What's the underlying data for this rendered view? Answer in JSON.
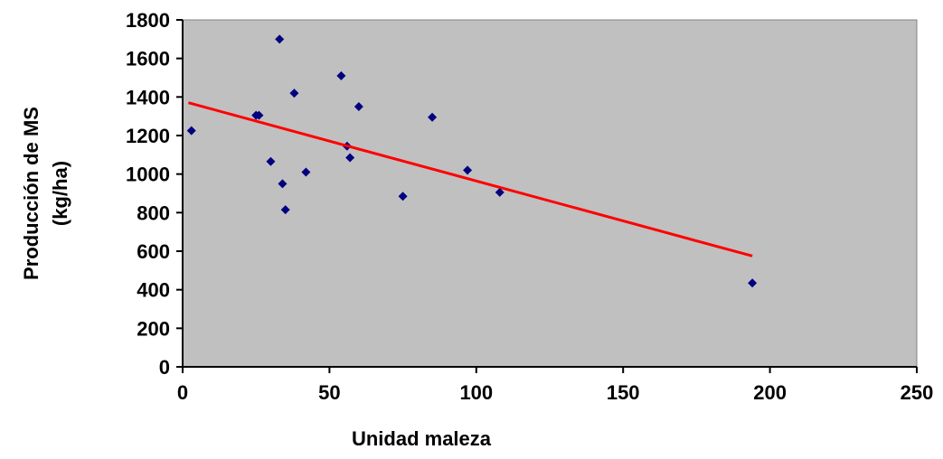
{
  "chart_data": {
    "type": "scatter",
    "title": "",
    "xlabel": "Unidad maleza",
    "ylabel_lines": [
      "Producción de MS",
      "(kg/ha)"
    ],
    "xlim": [
      0,
      250
    ],
    "ylim": [
      0,
      1800
    ],
    "x_ticks": [
      0,
      50,
      100,
      150,
      200,
      250
    ],
    "y_ticks": [
      0,
      200,
      400,
      600,
      800,
      1000,
      1200,
      1400,
      1600,
      1800
    ],
    "grid": false,
    "legend": "none",
    "colors": {
      "plot_background": "#c0c0c0",
      "points": "#000080",
      "trendline": "#ff0000",
      "axis": "#000000"
    },
    "series": [
      {
        "points": [
          {
            "x": 3,
            "y": 1225
          },
          {
            "x": 25,
            "y": 1305
          },
          {
            "x": 26,
            "y": 1305
          },
          {
            "x": 30,
            "y": 1065
          },
          {
            "x": 33,
            "y": 1700
          },
          {
            "x": 34,
            "y": 950
          },
          {
            "x": 35,
            "y": 815
          },
          {
            "x": 38,
            "y": 1420
          },
          {
            "x": 42,
            "y": 1010
          },
          {
            "x": 54,
            "y": 1510
          },
          {
            "x": 56,
            "y": 1145
          },
          {
            "x": 57,
            "y": 1085
          },
          {
            "x": 60,
            "y": 1350
          },
          {
            "x": 75,
            "y": 885
          },
          {
            "x": 85,
            "y": 1295
          },
          {
            "x": 97,
            "y": 1020
          },
          {
            "x": 108,
            "y": 905
          },
          {
            "x": 194,
            "y": 435
          }
        ]
      }
    ],
    "trendline": {
      "x_start": 2,
      "y_start": 1370,
      "x_end": 194,
      "y_end": 575
    }
  }
}
